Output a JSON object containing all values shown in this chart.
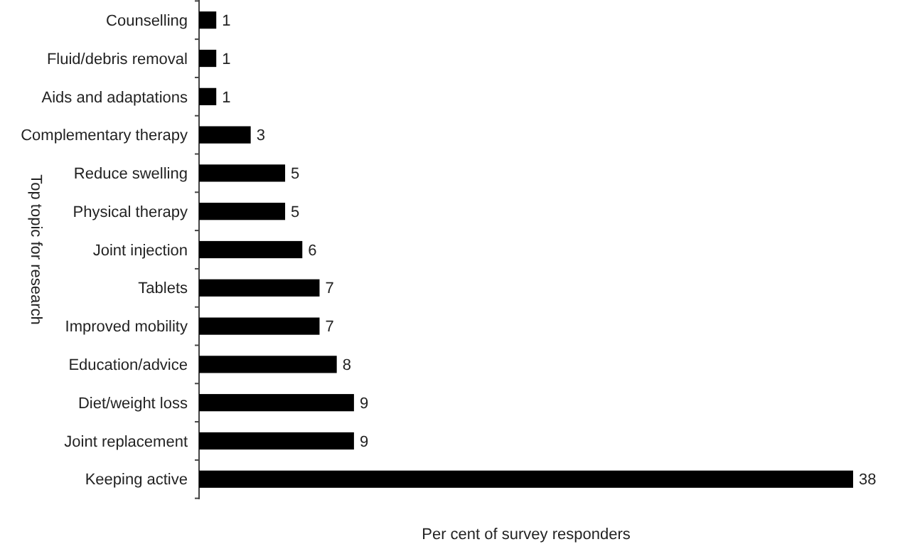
{
  "chart_data": {
    "type": "bar",
    "orientation": "horizontal",
    "xlabel": "Per cent of survey responders",
    "ylabel": "Top topic for research",
    "categories": [
      "Counselling",
      "Fluid/debris removal",
      "Aids and adaptations",
      "Complementary therapy",
      "Reduce swelling",
      "Physical therapy",
      "Joint injection",
      "Tablets",
      "Improved mobility",
      "Education/advice",
      "Diet/weight loss",
      "Joint replacement",
      "Keeping active"
    ],
    "values": [
      1,
      1,
      1,
      3,
      5,
      5,
      6,
      7,
      7,
      8,
      9,
      9,
      38
    ],
    "color": "#000000",
    "data_labels": true
  }
}
